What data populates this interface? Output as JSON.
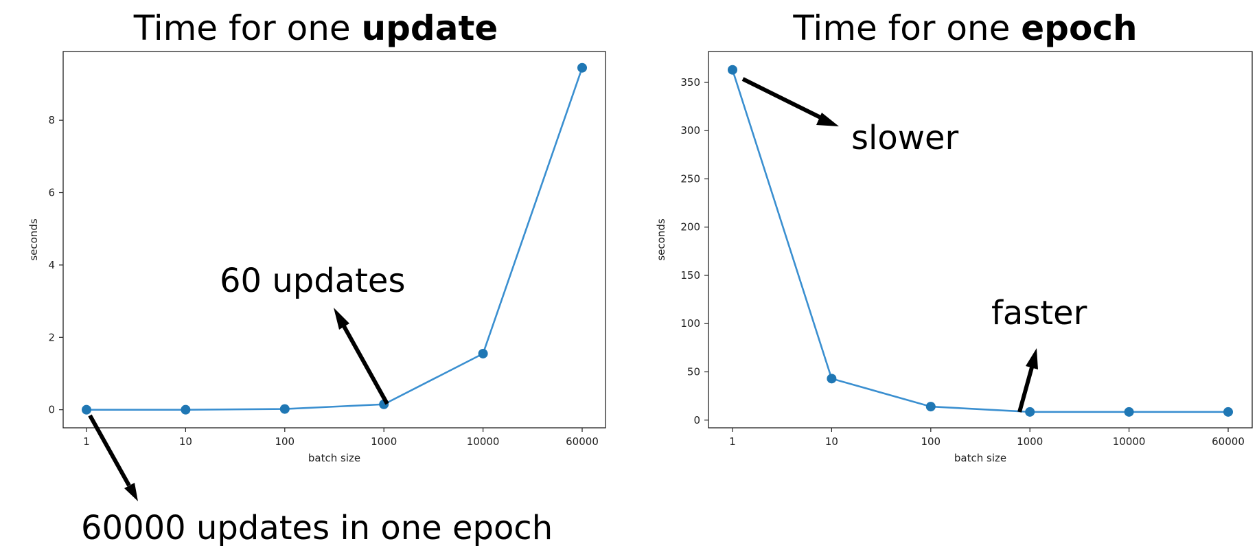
{
  "chart_data": [
    {
      "type": "line",
      "title": "Time for one ",
      "title_bold": "update",
      "xlabel": "batch size",
      "ylabel": "seconds",
      "categories": [
        "1",
        "10",
        "100",
        "1000",
        "10000",
        "60000"
      ],
      "series": [
        {
          "values": [
            0.0,
            0.0,
            0.02,
            0.15,
            1.55,
            9.45
          ]
        }
      ],
      "ylim": [
        -0.5,
        9.9
      ],
      "yticks": [
        0,
        2,
        4,
        6,
        8
      ],
      "grid": false,
      "color": "#1f77b4",
      "annotations": [
        {
          "text": "60 updates",
          "arrow_from_category": "1000"
        },
        {
          "text": "60000 updates in one epoch",
          "arrow_from_category": "1"
        }
      ]
    },
    {
      "type": "line",
      "title": "Time for one ",
      "title_bold": "epoch",
      "xlabel": "batch size",
      "ylabel": "seconds",
      "categories": [
        "1",
        "10",
        "100",
        "1000",
        "10000",
        "60000"
      ],
      "series": [
        {
          "values": [
            363,
            43,
            14,
            8.5,
            8.5,
            8.5
          ]
        }
      ],
      "ylim": [
        -8,
        382
      ],
      "yticks": [
        0,
        50,
        100,
        150,
        200,
        250,
        300,
        350
      ],
      "grid": false,
      "color": "#1f77b4",
      "annotations": [
        {
          "text": "slower",
          "arrow_from_category": "1"
        },
        {
          "text": "faster",
          "arrow_from_category": "1000"
        }
      ]
    }
  ]
}
